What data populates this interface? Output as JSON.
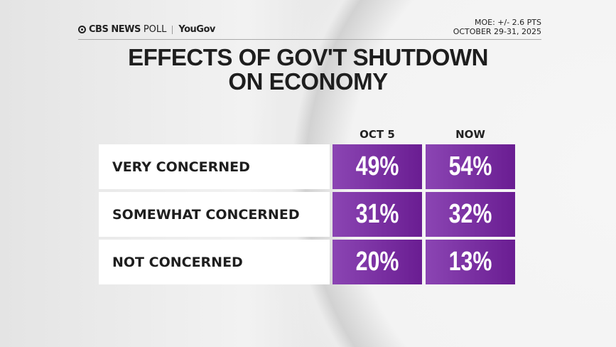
{
  "header": {
    "brand": "CBS NEWS",
    "poll": "POLL",
    "partner": "YouGov",
    "moe": "MOE: +/- 2.6 PTS",
    "dates": "OCTOBER 29-31, 2025"
  },
  "title_line1": "EFFECTS OF GOV'T SHUTDOWN",
  "title_line2": "ON ECONOMY",
  "chart_data": {
    "type": "table",
    "title": "EFFECTS OF GOV'T SHUTDOWN ON ECONOMY",
    "columns": [
      "OCT 5",
      "NOW"
    ],
    "rows": [
      {
        "label": "VERY CONCERNED",
        "values": [
          "49%",
          "54%"
        ]
      },
      {
        "label": "SOMEWHAT CONCERNED",
        "values": [
          "31%",
          "32%"
        ]
      },
      {
        "label": "NOT CONCERNED",
        "values": [
          "20%",
          "13%"
        ]
      }
    ],
    "colors": {
      "cell_start": "#8b45b3",
      "cell_end": "#6a1d92",
      "label_bg": "#ffffff"
    }
  }
}
